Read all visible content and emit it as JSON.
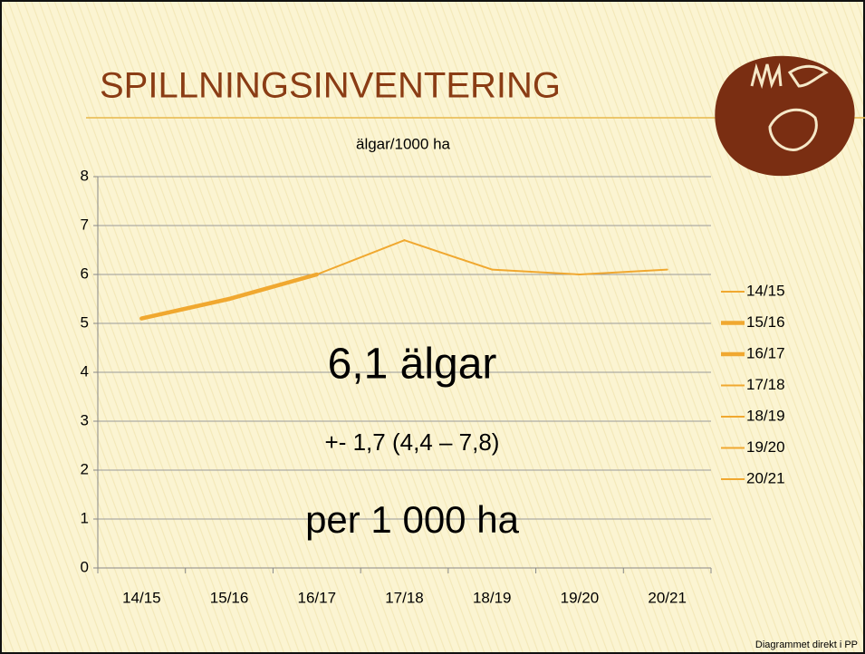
{
  "slide_title": "SPILLNINGSINVENTERING",
  "footer": "Diagrammet direkt i PP",
  "chart_data": {
    "type": "line",
    "title": "älgar/1000 ha",
    "categories": [
      "14/15",
      "15/16",
      "16/17",
      "17/18",
      "18/19",
      "19/20",
      "20/21"
    ],
    "series": [
      {
        "name": "14/15",
        "color": "#f0a830",
        "width": 2,
        "values": [
          5.1,
          null,
          null,
          null,
          null,
          null,
          null
        ]
      },
      {
        "name": "15/16",
        "color": "#f0a830",
        "width": 4.5,
        "values": [
          5.1,
          5.5,
          null,
          null,
          null,
          null,
          null
        ]
      },
      {
        "name": "16/17",
        "color": "#f0a830",
        "width": 4.5,
        "values": [
          null,
          5.5,
          6.0,
          null,
          null,
          null,
          null
        ]
      },
      {
        "name": "17/18",
        "color": "#f0a830",
        "width": 2,
        "values": [
          null,
          null,
          6.0,
          6.7,
          null,
          null,
          null
        ]
      },
      {
        "name": "18/19",
        "color": "#f0a830",
        "width": 2,
        "values": [
          null,
          null,
          null,
          6.7,
          6.1,
          null,
          null
        ]
      },
      {
        "name": "19/20",
        "color": "#f0a830",
        "width": 2,
        "values": [
          null,
          null,
          null,
          null,
          6.1,
          6.0,
          null
        ]
      },
      {
        "name": "20/21",
        "color": "#f0a830",
        "width": 2,
        "values": [
          null,
          null,
          null,
          null,
          null,
          6.0,
          6.1
        ]
      }
    ],
    "ylim": [
      0,
      8
    ],
    "yticks": [
      0,
      1,
      2,
      3,
      4,
      5,
      6,
      7,
      8
    ],
    "grid": true,
    "legend": "right",
    "annotations": [
      "6,1  älgar",
      "+- 1,7 (4,4 – 7,8)",
      "per 1 000 ha"
    ]
  }
}
